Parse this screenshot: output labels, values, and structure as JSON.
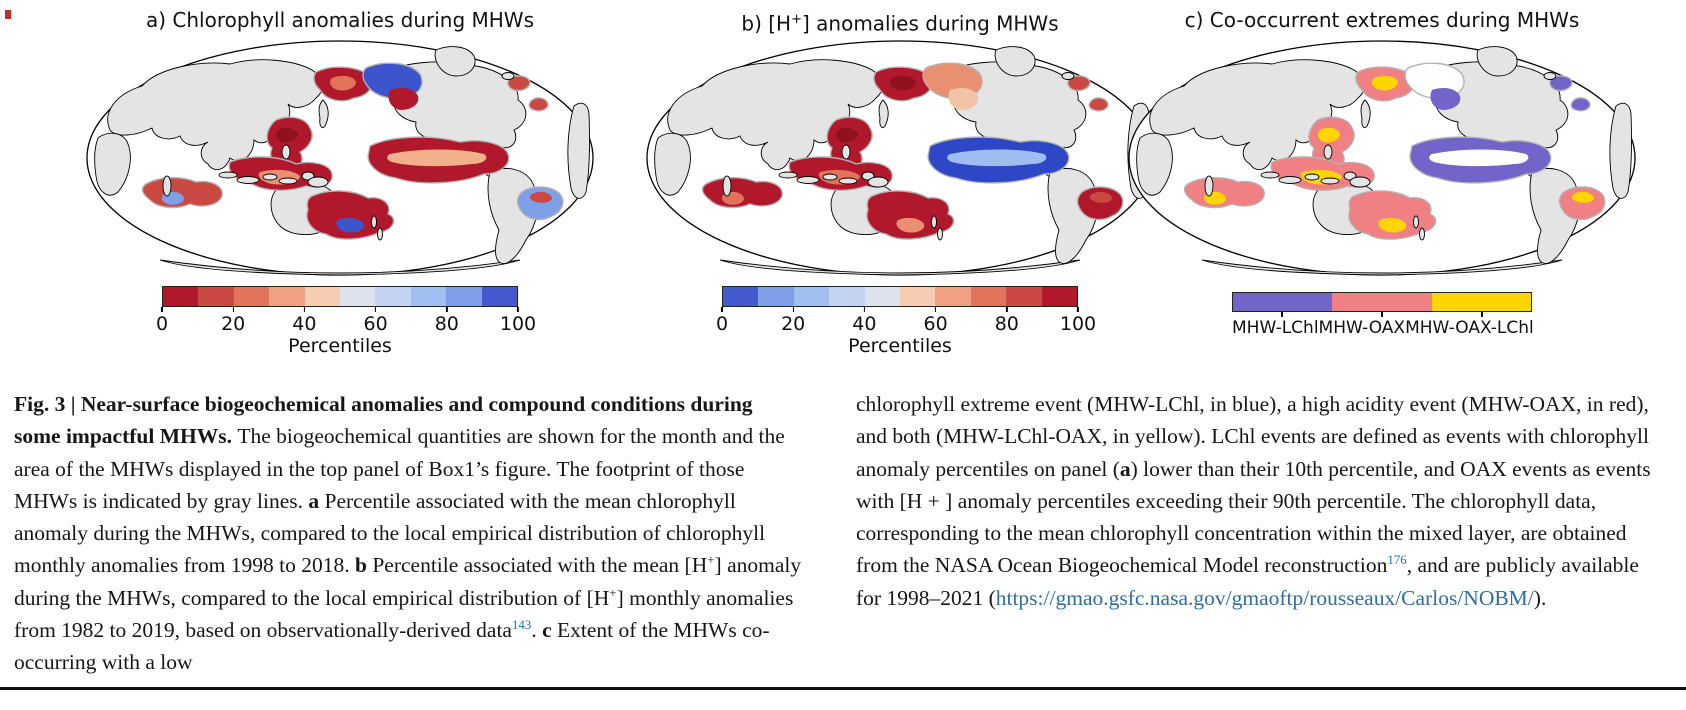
{
  "figure": {
    "map_colors": {
      "land": "#e4e4e4",
      "coast": "#000000",
      "ocean": "#ffffff",
      "footprint": "#b3b3b3"
    },
    "panels": [
      {
        "id": "a",
        "title_runs": [
          {
            "t": "a) Chlorophyll anomalies during MHWs"
          }
        ],
        "colorbar": {
          "colors": [
            "#b2182b",
            "#ca4942",
            "#e0735a",
            "#f0a183",
            "#f6ccb2",
            "#dde3ec",
            "#c2d4f1",
            "#a2c0ef",
            "#7fa0e9",
            "#4459cb"
          ],
          "ticks": [
            "0",
            "20",
            "40",
            "60",
            "80",
            "100"
          ],
          "label": "Percentiles"
        },
        "patches": {
          "nwpac": "#b2182b",
          "nwpac_a": "#e0735a",
          "alaska": "#3c55cc",
          "alaska_a": "#b2182b",
          "easia": "#b2182b",
          "easia_a": "#8f1220",
          "indo": "#b2182b",
          "indo_a": "#e89070",
          "eqpac": "#b2182b",
          "eqpac_a": "#f2b08c",
          "sind": "#ca4942",
          "sind_a": "#7fa0e9",
          "tasman": "#b2182b",
          "tasman_a": "#3c55cc",
          "satl": "#7fa0e9",
          "satl_a": "#ca4942",
          "natl": "#ca4942"
        },
        "regions_summary": "Low chlorophyll percentiles (red, <20) in NW Pacific, East Asian seas, Indonesia, equatorial East Pacific, Tasman Sea, south Indian Ocean; high percentiles (blue) in Gulf of Alaska and South Atlantic patches."
      },
      {
        "id": "b",
        "title_runs": [
          {
            "t": "b) [H"
          },
          {
            "t": "+",
            "sup": true
          },
          {
            "t": "] anomalies during MHWs"
          }
        ],
        "colorbar": {
          "colors": [
            "#4459cb",
            "#7fa0e9",
            "#a2c0ef",
            "#c2d4f1",
            "#dde3ec",
            "#f6ccb2",
            "#f0a183",
            "#e0735a",
            "#ca4942",
            "#b2182b"
          ],
          "ticks": [
            "0",
            "20",
            "40",
            "60",
            "80",
            "100"
          ],
          "label": "Percentiles"
        },
        "patches": {
          "nwpac": "#b2182b",
          "nwpac_a": "#8f1220",
          "alaska": "#e89070",
          "alaska_a": "#f2c3a6",
          "easia": "#b2182b",
          "easia_a": "#8f1220",
          "indo": "#b2182b",
          "indo_a": "#e0735a",
          "eqpac": "#2d47c6",
          "eqpac_a": "#9fbdf0",
          "sind": "#b2182b",
          "sind_a": "#e0735a",
          "tasman": "#b2182b",
          "tasman_a": "#e89070",
          "satl": "#b2182b",
          "satl_a": "#ca4942",
          "natl": "#ca4942"
        },
        "regions_summary": "High [H+] percentiles (red, >80) in NW Pacific, East Asian seas, Indonesia, south Indian Ocean, Tasman Sea and South Atlantic; low percentiles (blue) in the equatorial East Pacific."
      },
      {
        "id": "c",
        "title_runs": [
          {
            "t": "c) Co-occurrent extremes during MHWs"
          }
        ],
        "legend": {
          "items": [
            {
              "label": "MHW-LChl",
              "color": "#7264c8"
            },
            {
              "label": "MHW-OAX",
              "color": "#f08083"
            },
            {
              "label": "MHW-OAX-LChl",
              "color": "#ffd500"
            }
          ]
        },
        "patches": {
          "nwpac": "#f08083",
          "nwpac_a": "#ffd500",
          "alaska": "#ffffff",
          "alaska_a": "#7264c8",
          "easia": "#f08083",
          "easia_a": "#ffd500",
          "indo": "#f08083",
          "indo_a": "#ffd500",
          "eqpac": "#7264c8",
          "eqpac_a": "#ffffff",
          "sind": "#f08083",
          "sind_a": "#ffd500",
          "tasman": "#f08083",
          "tasman_a": "#ffd500",
          "satl": "#f08083",
          "satl_a": "#ffd500",
          "natl": "#7264c8"
        },
        "regions_summary": "MHW-LChl (purple) in equatorial East Pacific and Gulf of Alaska; MHW-OAX (red/pink) and MHW-OAX-LChl (yellow) along NW Pacific, East Asian seas, Indonesia, south Indian Ocean, Tasman Sea and South Atlantic; gray lines mark MHW footprints."
      }
    ]
  },
  "caption": {
    "left_runs": [
      {
        "t": "Fig. 3 | Near-surface biogeochemical anomalies and compound conditions during some impactful MHWs. ",
        "b": true
      },
      {
        "t": "The biogeochemical quantities are shown for the month and the area of the MHWs displayed in the top panel of Box1’s figure. The footprint of those MHWs is indicated by gray lines. "
      },
      {
        "t": "a",
        "b": true
      },
      {
        "t": " Percentile associated with the mean chlorophyll anomaly during the MHWs, compared to the local empirical distribution of chlorophyll monthly anomalies from 1998 to 2018. "
      },
      {
        "t": "b",
        "b": true
      },
      {
        "t": " Percentile associated with the mean [H"
      },
      {
        "t": "+",
        "sup": true
      },
      {
        "t": "] anomaly during the MHWs, compared to the local empirical distribution of [H"
      },
      {
        "t": "+",
        "sup": true
      },
      {
        "t": "] monthly anomalies from 1982 to 2019, based on observationally-derived data"
      },
      {
        "t": "143",
        "sup": true,
        "link": true
      },
      {
        "t": ". "
      },
      {
        "t": "c",
        "b": true
      },
      {
        "t": " Extent of the MHWs co-occurring with a low"
      }
    ],
    "right_runs": [
      {
        "t": "chlorophyll extreme event (MHW-LChl, in blue), a high acidity event (MHW-OAX, in red), and both (MHW-LChl-OAX, in yellow). LChl events are defined as events with chlorophyll anomaly percentiles on panel ("
      },
      {
        "t": "a",
        "b": true
      },
      {
        "t": ") lower than their 10th percentile, and OAX events as events with [H + ] anomaly percentiles exceeding their 90th percentile. The chlorophyll data, corresponding to the mean chlorophyll concentration within the mixed layer, are obtained from the NASA Ocean Biogeochemical Model reconstruction"
      },
      {
        "t": "176",
        "sup": true,
        "link": true
      },
      {
        "t": ", and are publicly available for 1998–2021 ("
      },
      {
        "t": "https://gmao.gsfc.nasa.gov/gmaoftp/rousseaux/Carlos/NOBM/",
        "link": true
      },
      {
        "t": ")."
      }
    ]
  }
}
